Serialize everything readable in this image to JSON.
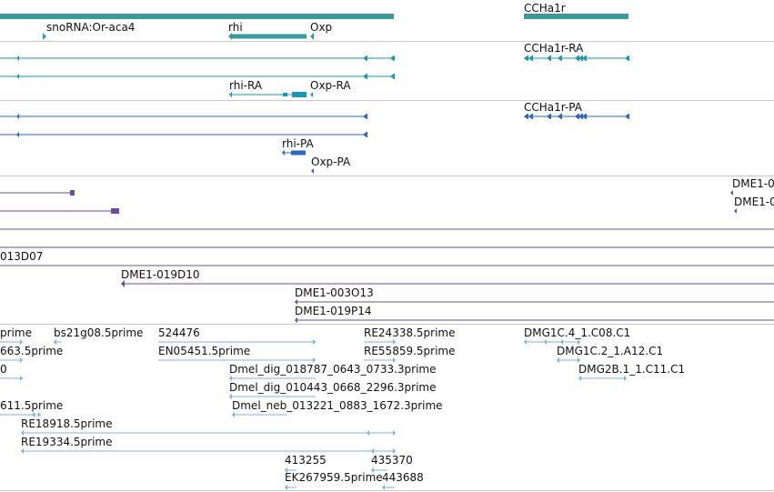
{
  "colors": {
    "gene": "#3a9a9a",
    "transcript_rna": "#1a98b4",
    "transcript_pa": "#2a66c4",
    "clone": "#6a4aa6",
    "est": "#7ab4dc",
    "separator": "#c8c8c8"
  },
  "tracks": {
    "genes": {
      "labels": [
        {
          "text": "snoRNA:Or-aca4",
          "name": "gene-label-snorna-or-aca4"
        },
        {
          "text": "rhi",
          "name": "gene-label-rhi"
        },
        {
          "text": "Oxp",
          "name": "gene-label-oxp"
        },
        {
          "text": "CCHa1r",
          "name": "gene-label-ccha1r"
        }
      ]
    },
    "transcripts_rna": {
      "labels": [
        {
          "text": "CCHa1r-RA",
          "name": "transcript-label-ccha1r-ra"
        },
        {
          "text": "rhi-RA",
          "name": "transcript-label-rhi-ra"
        },
        {
          "text": "Oxp-RA",
          "name": "transcript-label-oxp-ra"
        }
      ]
    },
    "transcripts_pa": {
      "labels": [
        {
          "text": "CCHa1r-PA",
          "name": "protein-label-ccha1r-pa"
        },
        {
          "text": "rhi-PA",
          "name": "protein-label-rhi-pa"
        },
        {
          "text": "Oxp-PA",
          "name": "protein-label-oxp-pa"
        }
      ]
    },
    "clones": {
      "labels": [
        {
          "text": "DME1-0",
          "name": "clone-label-dme1-0-a"
        },
        {
          "text": "DME1-0",
          "name": "clone-label-dme1-0-b"
        },
        {
          "text": "013D07",
          "name": "clone-label-013d07"
        },
        {
          "text": "DME1-019D10",
          "name": "clone-label-dme1-019d10"
        },
        {
          "text": "DME1-003O13",
          "name": "clone-label-dme1-003o13"
        },
        {
          "text": "DME1-019P14",
          "name": "clone-label-dme1-019p14"
        }
      ]
    },
    "ests": {
      "labels": [
        {
          "text": "prime",
          "name": "est-label-prime"
        },
        {
          "text": "bs21g08.5prime",
          "name": "est-label-bs21g08"
        },
        {
          "text": "524476",
          "name": "est-label-524476"
        },
        {
          "text": "RE24338.5prime",
          "name": "est-label-re24338"
        },
        {
          "text": "DMG1C.4_1.C08.C1",
          "name": "est-label-dmg1c4"
        },
        {
          "text": "663.5prime",
          "name": "est-label-663"
        },
        {
          "text": "EN05451.5prime",
          "name": "est-label-en05451"
        },
        {
          "text": "RE55859.5prime",
          "name": "est-label-re55859"
        },
        {
          "text": "DMG1C.2_1.A12.C1",
          "name": "est-label-dmg1c2"
        },
        {
          "text": "0",
          "name": "est-label-0"
        },
        {
          "text": "Dmel_dig_018787_0643_0733.3prime",
          "name": "est-label-dig-018787"
        },
        {
          "text": "DMG2B.1_1.C11.C1",
          "name": "est-label-dmg2b1"
        },
        {
          "text": "Dmel_dig_010443_0668_2296.3prime",
          "name": "est-label-dig-010443"
        },
        {
          "text": "611.5prime",
          "name": "est-label-611"
        },
        {
          "text": "Dmel_neb_013221_0883_1672.3prime",
          "name": "est-label-neb-013221"
        },
        {
          "text": "RE18918.5prime",
          "name": "est-label-re18918"
        },
        {
          "text": "RE19334.5prime",
          "name": "est-label-re19334"
        },
        {
          "text": "413255",
          "name": "est-label-413255"
        },
        {
          "text": "435370",
          "name": "est-label-435370"
        },
        {
          "text": "EK267959.5prime",
          "name": "est-label-ek267959"
        },
        {
          "text": "443688",
          "name": "est-label-443688"
        }
      ]
    }
  }
}
